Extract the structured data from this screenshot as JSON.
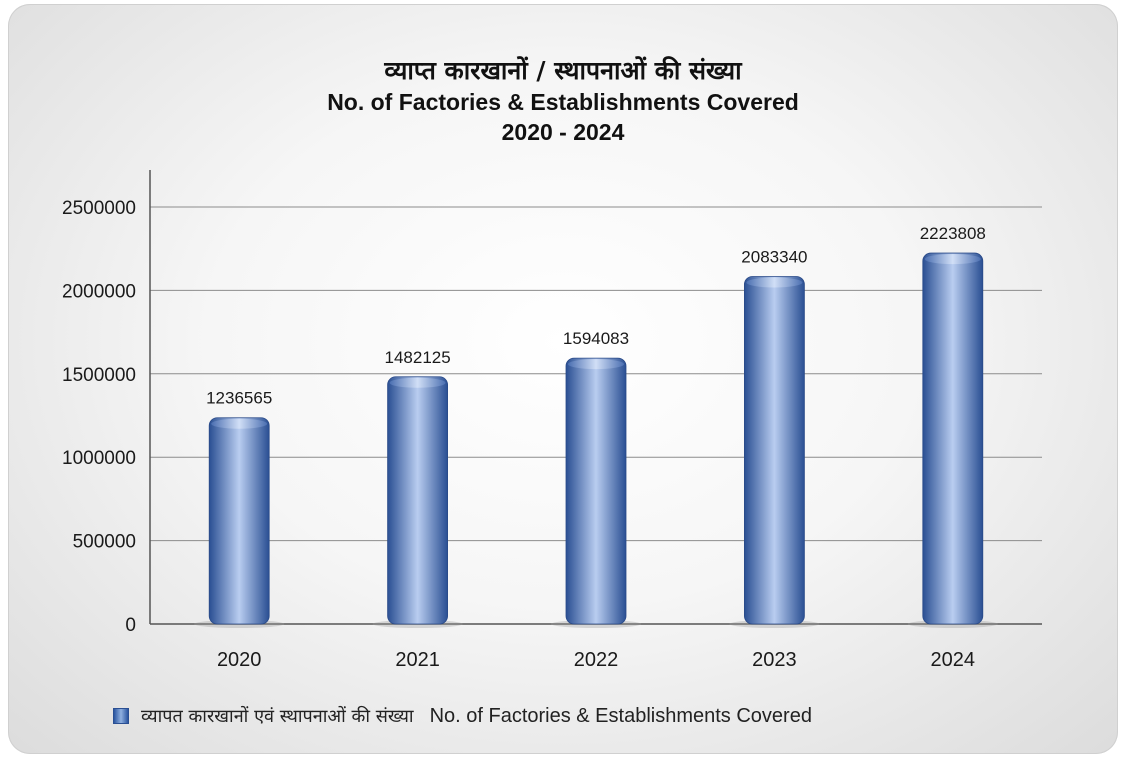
{
  "colors": {
    "bar_dark": "#2f5597",
    "bar_light": "#b9cdf0",
    "grid": "#8c8c8c",
    "axis": "#555555"
  },
  "chart_data": {
    "type": "bar",
    "title_hi": "व्याप्त कारखानों / स्थापनाओं की संख्या",
    "title": "No. of Factories & Establishments Covered",
    "subtitle": "2020 - 2024",
    "categories": [
      "2020",
      "2021",
      "2022",
      "2023",
      "2024"
    ],
    "values": [
      1236565,
      1482125,
      1594083,
      2083340,
      2223808
    ],
    "data_labels": [
      "1236565",
      "1482125",
      "1594083",
      "2083340",
      "2223808"
    ],
    "ylim": [
      0,
      2500000
    ],
    "yticks": [
      "0",
      "500000",
      "1000000",
      "1500000",
      "2000000",
      "2500000"
    ],
    "grid": true,
    "legend_position": "bottom",
    "legend": {
      "name_hi": "व्यापत कारखानों एवं स्थापनाओं की संख्या",
      "name_en": "No. of Factories & Establishments Covered"
    }
  }
}
